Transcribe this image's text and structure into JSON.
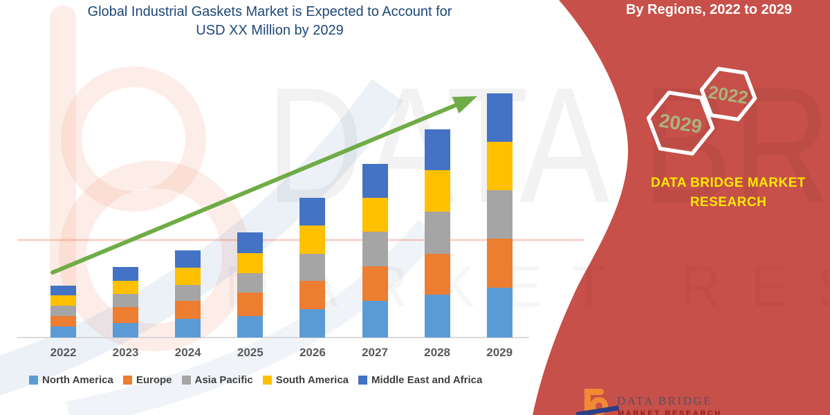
{
  "header": {
    "title_line1": "Global Industrial Gaskets Market is Expected to Account for",
    "title_line2": "USD XX Million by 2029"
  },
  "side_panel": {
    "heading": "By Regions, 2022 to 2029",
    "hexagons": [
      {
        "label": "2022"
      },
      {
        "label": "2029"
      }
    ],
    "brand_line1": "DATA BRIDGE MARKET",
    "brand_line2": "RESEARCH",
    "accent_red": "#C7504A",
    "hex_year_color": "#A9B37E",
    "brand_yellow": "#FFE800"
  },
  "watermark": {
    "big_text": "DATA BRIDGE",
    "spaced_text": "MARKET RESEARCH"
  },
  "logo": {
    "name": "DATA BRIDGE",
    "sub": "MARKET RESEARCH"
  },
  "chart_data": {
    "type": "bar",
    "stacked": true,
    "title": "Global Industrial Gaskets Market is Expected to Account for USD XX Million by 2029",
    "categories": [
      "2022",
      "2023",
      "2024",
      "2025",
      "2026",
      "2027",
      "2028",
      "2029"
    ],
    "series": [
      {
        "name": "North America",
        "color": "#5B9BD5",
        "values": [
          16,
          21,
          27,
          31,
          41,
          53,
          62,
          72
        ]
      },
      {
        "name": "Europe",
        "color": "#ED7D31",
        "values": [
          15,
          23,
          26,
          34,
          41,
          50,
          59,
          71
        ]
      },
      {
        "name": "Asia Pacific",
        "color": "#A5A5A5",
        "values": [
          15,
          19,
          23,
          28,
          39,
          50,
          61,
          70
        ]
      },
      {
        "name": "South America",
        "color": "#FFC000",
        "values": [
          15,
          19,
          25,
          29,
          41,
          49,
          60,
          70
        ]
      },
      {
        "name": "Middle East and Africa",
        "color": "#4472C4",
        "values": [
          14,
          20,
          25,
          30,
          40,
          49,
          59,
          70
        ]
      }
    ],
    "totals": [
      75,
      102,
      126,
      152,
      202,
      251,
      301,
      353
    ],
    "units": "relative height, pixel-estimated (no value axis shown; values labeled USD XX Million)",
    "value_axis_visible": false,
    "grid": false,
    "legend_position": "bottom",
    "xlabel": "",
    "ylabel": "",
    "trend_arrow": true,
    "trend_arrow_color": "#6FAC46"
  }
}
